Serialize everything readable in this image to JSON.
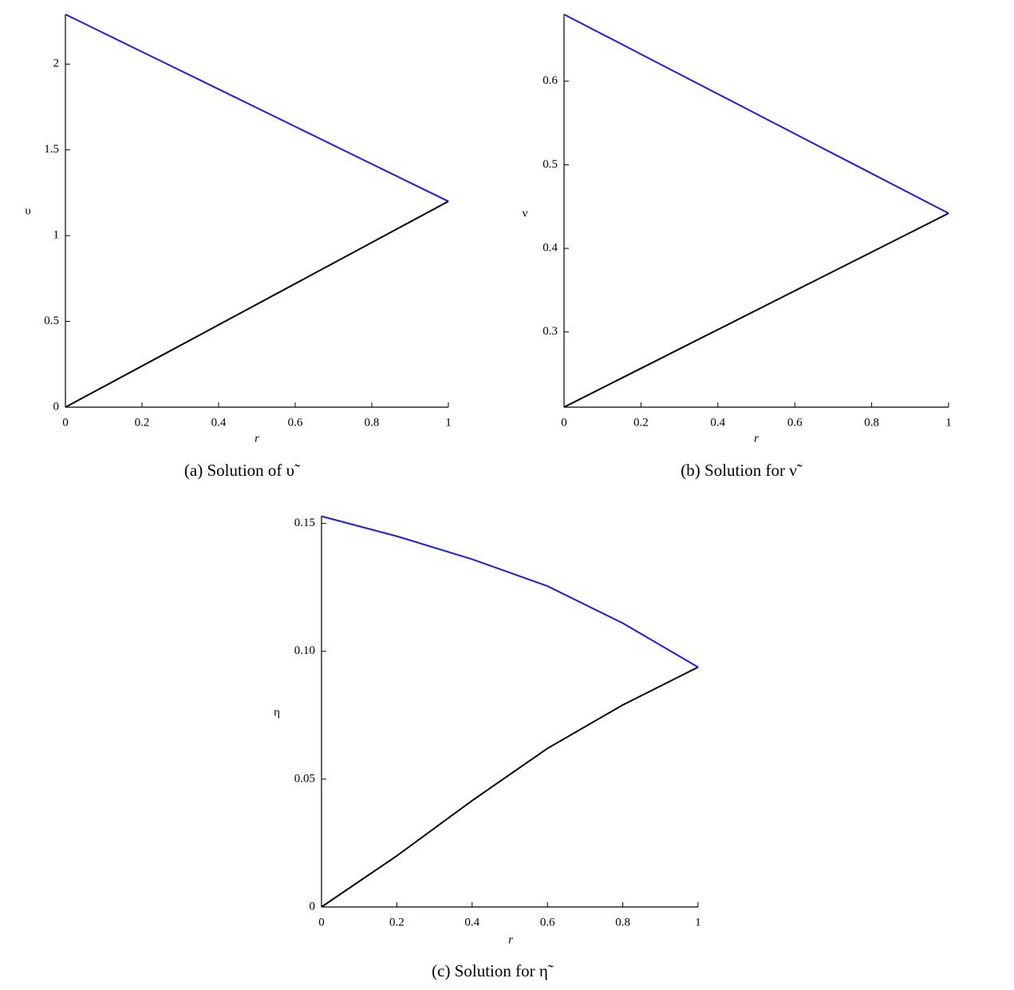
{
  "chart_data": [
    {
      "type": "line",
      "caption": "(a) Solution of υ̃",
      "xlabel": "r",
      "ylabel": "υ",
      "x": [
        0,
        0.2,
        0.4,
        0.6,
        0.8,
        1
      ],
      "series": [
        {
          "color": "#1a1aff",
          "values": [
            2.29,
            2.072,
            1.854,
            1.636,
            1.418,
            1.2
          ]
        },
        {
          "color": "#000000",
          "values": [
            0,
            0.24,
            0.48,
            0.72,
            0.96,
            1.2
          ]
        }
      ],
      "xlim": [
        0,
        1
      ],
      "ylim": [
        0,
        2.29
      ],
      "xticks": [
        0,
        0.2,
        0.4,
        0.6,
        0.8,
        1
      ],
      "yticks": [
        0,
        0.5,
        1,
        1.5,
        2
      ]
    },
    {
      "type": "line",
      "caption": "(b) Solution for ν̃",
      "xlabel": "r",
      "ylabel": "ν",
      "x": [
        0,
        0.2,
        0.4,
        0.6,
        0.8,
        1
      ],
      "series": [
        {
          "color": "#1a1aff",
          "values": [
            0.68,
            0.6324,
            0.5848,
            0.5372,
            0.4896,
            0.442
          ]
        },
        {
          "color": "#000000",
          "values": [
            0.21,
            0.2564,
            0.3028,
            0.3492,
            0.3956,
            0.442
          ]
        }
      ],
      "xlim": [
        0,
        1
      ],
      "ylim": [
        0.21,
        0.68
      ],
      "xticks": [
        0,
        0.2,
        0.4,
        0.6,
        0.8,
        1
      ],
      "yticks": [
        0.3,
        0.4,
        0.5,
        0.6
      ]
    },
    {
      "type": "line",
      "caption": "(c) Solution for η̃",
      "xlabel": "r",
      "ylabel": "η",
      "x": [
        0,
        0.2,
        0.4,
        0.6,
        0.8,
        1
      ],
      "series": [
        {
          "color": "#1a1aff",
          "values": [
            0.1528,
            0.145,
            0.136,
            0.1255,
            0.111,
            0.0938
          ]
        },
        {
          "color": "#000000",
          "values": [
            0,
            0.02,
            0.0416,
            0.062,
            0.079,
            0.0938
          ]
        }
      ],
      "xlim": [
        0,
        1
      ],
      "ylim": [
        0,
        0.153
      ],
      "xticks": [
        0,
        0.2,
        0.4,
        0.6,
        0.8,
        1
      ],
      "yticks": [
        0,
        0.05,
        {
          "value": 0.1,
          "label": "0.10"
        },
        0.15
      ]
    }
  ]
}
